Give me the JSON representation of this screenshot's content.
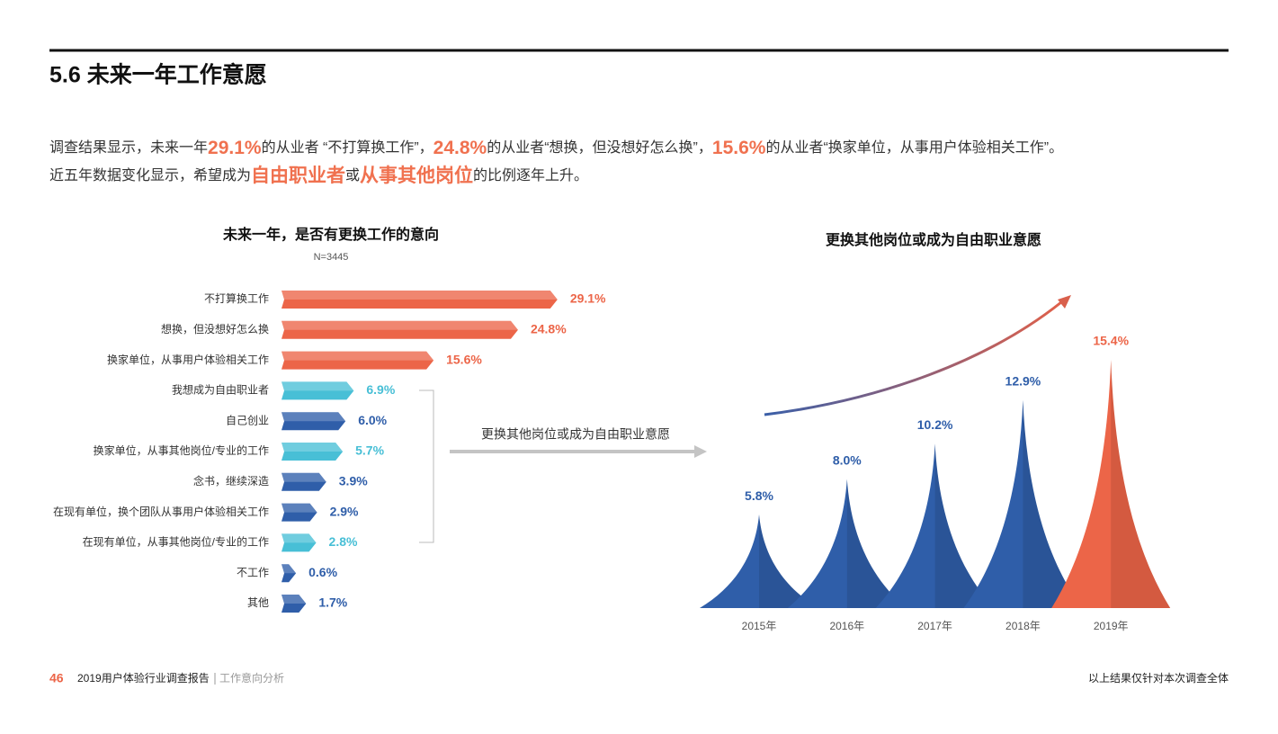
{
  "header": {
    "title": "5.6 未来一年工作意愿"
  },
  "intro": {
    "lines": [
      [
        {
          "text": "调查结果显示，未来一年",
          "highlight": false
        },
        {
          "text": "29.1%",
          "highlight": true
        },
        {
          "text": "的从业者 “不打算换工作”，",
          "highlight": false
        },
        {
          "text": "24.8%",
          "highlight": true
        },
        {
          "text": "的从业者“想换，但没想好怎么换”，",
          "highlight": false
        },
        {
          "text": "15.6%",
          "highlight": true
        },
        {
          "text": "的从业者“换家单位，从事用户体验相关工作”。",
          "highlight": false
        }
      ],
      [
        {
          "text": "近五年数据变化显示，希望成为",
          "highlight": false
        },
        {
          "text": "自由职业者",
          "highlight": true
        },
        {
          "text": "或",
          "highlight": false
        },
        {
          "text": "从事其他岗位",
          "highlight": true
        },
        {
          "text": "的比例逐年上升。",
          "highlight": false
        }
      ]
    ]
  },
  "chart_data": [
    {
      "type": "hbar",
      "title": "未来一年，是否有更换工作的意向",
      "subtitle": "N=3445",
      "categories": [
        "不打算换工作",
        "想换，但没想好怎么换",
        "换家单位，从事用户体验相关工作",
        "我想成为自由职业者",
        "自己创业",
        "换家单位，从事其他岗位/专业的工作",
        "念书，继续深造",
        "在现有单位，换个团队从事用户体验相关工作",
        "在现有单位，从事其他岗位/专业的工作",
        "不工作",
        "其他"
      ],
      "values": [
        29.1,
        24.8,
        15.6,
        6.9,
        6.0,
        5.7,
        3.9,
        2.9,
        2.8,
        0.6,
        1.7
      ],
      "value_labels": [
        "29.1%",
        "24.8%",
        "15.6%",
        "6.9%",
        "6.0%",
        "5.7%",
        "3.9%",
        "2.9%",
        "2.8%",
        "0.6%",
        "1.7%"
      ],
      "colors": [
        "#ec6548",
        "#ec6548",
        "#ec6548",
        "#48bfd6",
        "#2f5ea9",
        "#48bfd6",
        "#2f5ea9",
        "#2f5ea9",
        "#48bfd6",
        "#2f5ea9",
        "#2f5ea9"
      ],
      "annotation": "更换其他岗位或成为自由职业意愿"
    },
    {
      "type": "peak",
      "title": "更换其他岗位或成为自由职业意愿",
      "categories": [
        "2015年",
        "2016年",
        "2017年",
        "2018年",
        "2019年"
      ],
      "values": [
        5.8,
        8.0,
        10.2,
        12.9,
        15.4
      ],
      "value_labels": [
        "5.8%",
        "8.0%",
        "10.2%",
        "12.9%",
        "15.4%"
      ],
      "colors": [
        "#2f5ea9",
        "#2f5ea9",
        "#2f5ea9",
        "#2f5ea9",
        "#ec6548"
      ]
    }
  ],
  "footer": {
    "page": "46",
    "report": "2019用户体验行业调查报告",
    "section": "工作意向分析",
    "note": "以上结果仅针对本次调查全体"
  }
}
